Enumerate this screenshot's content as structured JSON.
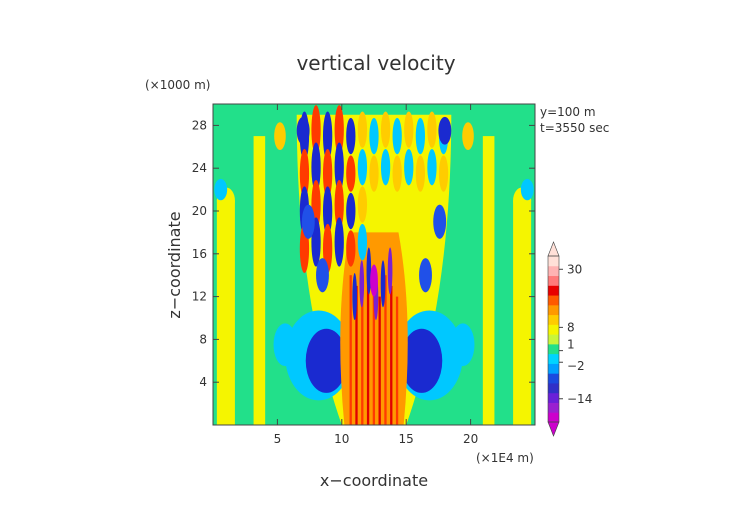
{
  "chart_data": {
    "type": "heatmap",
    "title": "vertical velocity",
    "xlabel": "x−coordinate",
    "ylabel": "z−coordinate",
    "x_unit": "(×1E4 m)",
    "y_unit": "(×1000 m)",
    "annotations": [
      "y=100 m",
      "t=3550 sec"
    ],
    "xlim": [
      0,
      25
    ],
    "ylim": [
      0,
      30
    ],
    "x_ticks": [
      5,
      10,
      15,
      20
    ],
    "x_tick_labels": [
      "5",
      "10",
      "15",
      "20"
    ],
    "y_ticks": [
      4,
      8,
      12,
      16,
      20,
      24,
      28
    ],
    "y_tick_labels": [
      "4",
      "8",
      "12",
      "16",
      "20",
      "24",
      "28"
    ],
    "colorbar": {
      "tick_values": [
        30,
        8,
        1,
        -2,
        -14
      ],
      "tick_labels": [
        "30",
        "8",
        "1",
        "−2",
        "−14"
      ],
      "colors": [
        "#cc00cc",
        "#9a20d0",
        "#6a20d8",
        "#3030c8",
        "#1a4ae0",
        "#00a0ff",
        "#00d4ff",
        "#22e08a",
        "#c8f53a",
        "#f5f500",
        "#ffcc00",
        "#ff9900",
        "#ff5a00",
        "#e80000",
        "#ff7a7a",
        "#ffb3b3",
        "#ffe0d8"
      ]
    },
    "background_value_color": "#22e08a"
  }
}
